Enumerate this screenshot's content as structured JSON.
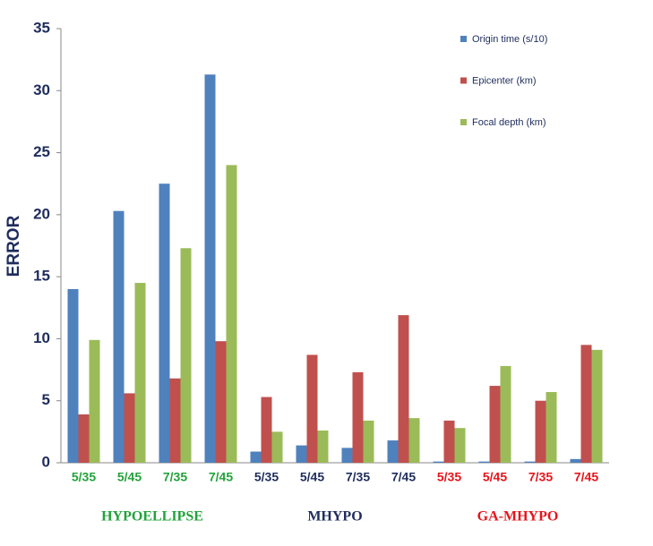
{
  "chart_data": {
    "type": "bar",
    "ylabel": "ERROR",
    "ylim": [
      0,
      35
    ],
    "yticks": [
      0,
      5,
      10,
      15,
      20,
      25,
      30,
      35
    ],
    "groups": [
      {
        "label": "HYPOELLIPSE",
        "color": "#22a33a",
        "categories": [
          "5/35",
          "5/45",
          "7/35",
          "7/45"
        ]
      },
      {
        "label": "MHYPO",
        "color": "#1f2d5c",
        "categories": [
          "5/35",
          "5/45",
          "7/35",
          "7/45"
        ]
      },
      {
        "label": "GA-MHYPO",
        "color": "#e8141b",
        "categories": [
          "5/35",
          "5/45",
          "7/35",
          "7/45"
        ]
      }
    ],
    "series": [
      {
        "name": "Origin time (s/10)",
        "color": "#4f81bd",
        "values": [
          14.0,
          20.3,
          22.5,
          31.3,
          0.9,
          1.4,
          1.2,
          1.8,
          0.1,
          0.1,
          0.1,
          0.3
        ]
      },
      {
        "name": "Epicenter (km)",
        "color": "#c0504d",
        "values": [
          3.9,
          5.6,
          6.8,
          9.8,
          5.3,
          8.7,
          7.3,
          11.9,
          3.4,
          6.2,
          5.0,
          9.5
        ]
      },
      {
        "name": "Focal depth (km)",
        "color": "#9bbb59",
        "values": [
          9.9,
          14.5,
          17.3,
          24.0,
          2.5,
          2.6,
          3.4,
          3.6,
          2.8,
          7.8,
          5.7,
          9.1
        ]
      }
    ]
  }
}
